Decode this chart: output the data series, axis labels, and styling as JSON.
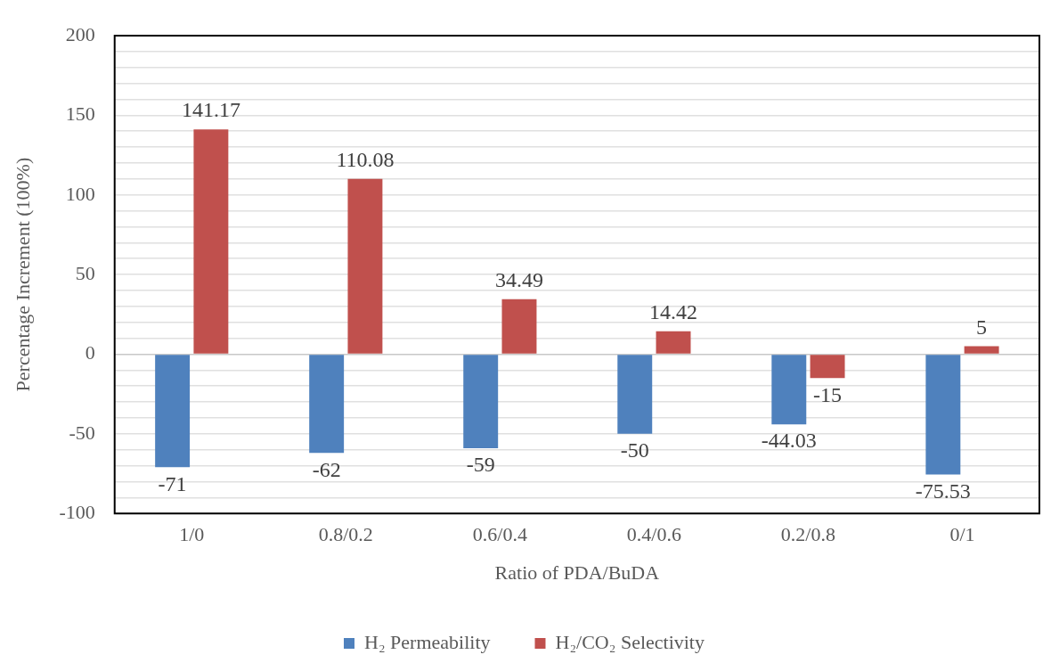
{
  "chart_data": {
    "type": "bar",
    "xlabel": "Ratio of PDA/BuDA",
    "ylabel": "Percentage Increment (100%)",
    "categories": [
      "1/0",
      "0.8/0.2",
      "0.6/0.4",
      "0.4/0.6",
      "0.2/0.8",
      "0/1"
    ],
    "series": [
      {
        "name": "H₂ Permeability",
        "color": "#4f81bd",
        "values": [
          -71,
          -62,
          -59,
          -50,
          -44.03,
          -75.53
        ]
      },
      {
        "name": "H₂/CO₂ Selectivity",
        "color": "#c0504d",
        "values": [
          141.17,
          110.08,
          34.49,
          14.42,
          -15,
          5
        ]
      }
    ],
    "ylim": [
      -100,
      200
    ],
    "yticks": [
      -100,
      {
        "value": -90,
        "label": null
      },
      {
        "value": -80,
        "label": null
      },
      {
        "value": -70,
        "label": null
      },
      {
        "value": -60,
        "label": null
      },
      -50,
      {
        "value": -40,
        "label": null
      },
      {
        "value": -30,
        "label": null
      },
      {
        "value": -20,
        "label": null
      },
      {
        "value": -10,
        "label": null
      },
      0,
      {
        "value": 10,
        "label": null
      },
      {
        "value": 20,
        "label": null
      },
      {
        "value": 30,
        "label": null
      },
      {
        "value": 40,
        "label": null
      },
      50,
      {
        "value": 60,
        "label": null
      },
      {
        "value": 70,
        "label": null
      },
      {
        "value": 80,
        "label": null
      },
      {
        "value": 90,
        "label": null
      },
      100,
      {
        "value": 110,
        "label": null
      },
      {
        "value": 120,
        "label": null
      },
      {
        "value": 130,
        "label": null
      },
      {
        "value": 140,
        "label": null
      },
      150,
      {
        "value": 160,
        "label": null
      },
      {
        "value": 170,
        "label": null
      },
      {
        "value": 180,
        "label": null
      },
      {
        "value": 190,
        "label": null
      },
      200
    ],
    "grid": "y",
    "legend": "bottom",
    "data_labels": true
  }
}
